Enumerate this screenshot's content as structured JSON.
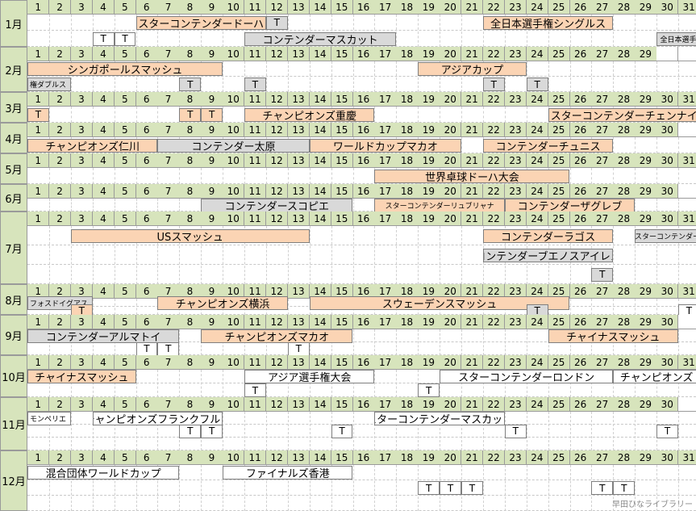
{
  "months": [
    {
      "label": "1月",
      "days": 31,
      "events": [
        {
          "lane": 0,
          "start": 6,
          "end": 11,
          "text": "スターコンテンダードーハ",
          "color": "orange"
        },
        {
          "lane": 0,
          "start": 22,
          "end": 27,
          "text": "全日本選手権シングルス",
          "color": "orange"
        },
        {
          "lane": 1,
          "start": 11,
          "end": 17,
          "text": "コンテンダーマスカット",
          "color": "gray"
        },
        {
          "lane": 1,
          "start": 30,
          "end": 31,
          "text": "全日本選手",
          "color": "gray",
          "small": true
        }
      ],
      "t": [
        {
          "lane": 0,
          "day": 12,
          "color": "gray"
        },
        {
          "lane": 1,
          "day": 4
        },
        {
          "lane": 1,
          "day": 5
        }
      ]
    },
    {
      "label": "2月",
      "days": 29,
      "events": [
        {
          "lane": 0,
          "start": 1,
          "end": 9,
          "text": "シンガポールスマッシュ",
          "color": "orange"
        },
        {
          "lane": 0,
          "start": 19,
          "end": 23,
          "text": "アジアカップ",
          "color": "orange"
        },
        {
          "lane": 1,
          "start": 1,
          "end": 2,
          "text": "権ダブルス",
          "color": "gray",
          "small": true,
          "left": true
        }
      ],
      "t": [
        {
          "lane": 1,
          "day": 8,
          "color": "gray"
        },
        {
          "lane": 1,
          "day": 11,
          "color": "gray"
        },
        {
          "lane": 1,
          "day": 22,
          "color": "gray"
        },
        {
          "lane": 1,
          "day": 24,
          "color": "gray"
        }
      ]
    },
    {
      "label": "3月",
      "days": 31,
      "events": [
        {
          "lane": 0,
          "start": 11,
          "end": 16,
          "text": "チャンピオンズ重慶",
          "color": "orange"
        },
        {
          "lane": 0,
          "start": 25,
          "end": 31,
          "text": "スターコンテンダーチェンナイ",
          "color": "orange"
        }
      ],
      "t": [
        {
          "lane": 0,
          "day": 1,
          "color": "orange"
        },
        {
          "lane": 0,
          "day": 8,
          "color": "orange"
        },
        {
          "lane": 0,
          "day": 9,
          "color": "orange"
        }
      ]
    },
    {
      "label": "4月",
      "days": 30,
      "events": [
        {
          "lane": 0,
          "start": 1,
          "end": 6,
          "text": "チャンピオンズ仁川",
          "color": "orange"
        },
        {
          "lane": 0,
          "start": 7,
          "end": 13,
          "text": "コンテンダー太原",
          "color": "gray"
        },
        {
          "lane": 0,
          "start": 14,
          "end": 20,
          "text": "ワールドカップマカオ",
          "color": "orange"
        },
        {
          "lane": 0,
          "start": 22,
          "end": 27,
          "text": "コンテンダーチュニス",
          "color": "orange"
        }
      ],
      "t": []
    },
    {
      "label": "5月",
      "days": 31,
      "events": [
        {
          "lane": 0,
          "start": 17,
          "end": 25,
          "text": "世界卓球ドーハ大会",
          "color": "orange"
        }
      ],
      "t": []
    },
    {
      "label": "6月",
      "days": 30,
      "events": [
        {
          "lane": 0,
          "start": 9,
          "end": 15,
          "text": "コンテンダースコピエ",
          "color": "gray"
        },
        {
          "lane": 0,
          "start": 17,
          "end": 22,
          "text": "スターコンテンダーリュブリャナ",
          "color": "orange",
          "small": true
        },
        {
          "lane": 0,
          "start": 23,
          "end": 28,
          "text": "コンテンダーザグレブ",
          "color": "orange"
        }
      ],
      "t": []
    },
    {
      "label": "7月",
      "days": 31,
      "events": [
        {
          "lane": 0,
          "start": 3,
          "end": 13,
          "text": "USスマッシュ",
          "color": "orange"
        },
        {
          "lane": 0,
          "start": 22,
          "end": 27,
          "text": "コンテンダーラゴス",
          "color": "orange"
        },
        {
          "lane": 0,
          "start": 29,
          "end": 31,
          "text": "スターコンテンダー",
          "color": "gray",
          "small": true
        },
        {
          "lane": 1,
          "start": 22,
          "end": 27,
          "text": "コンテンダーブエノスアイレス",
          "color": "gray"
        }
      ],
      "t": [
        {
          "lane": 2,
          "day": 27,
          "color": "gray"
        }
      ]
    },
    {
      "label": "8月",
      "days": 31,
      "events": [
        {
          "lane": 0,
          "start": 1,
          "end": 3,
          "text": "フォスドイグアス",
          "color": "gray",
          "small": true,
          "left": true
        },
        {
          "lane": 0,
          "start": 7,
          "end": 12,
          "text": "チャンピオンズ横浜",
          "color": "orange"
        },
        {
          "lane": 0,
          "start": 14,
          "end": 25,
          "text": "スウェーデンスマッシュ",
          "color": "orange"
        }
      ],
      "t": [
        {
          "lane": 1,
          "day": 3,
          "color": "orange"
        },
        {
          "lane": 1,
          "day": 24,
          "color": "gray"
        },
        {
          "lane": 1,
          "day": 31
        }
      ]
    },
    {
      "label": "9月",
      "days": 30,
      "events": [
        {
          "lane": 0,
          "start": 1,
          "end": 7,
          "text": "コンテンダーアルマトイ",
          "color": "gray"
        },
        {
          "lane": 0,
          "start": 9,
          "end": 15,
          "text": "チャンピオンズマカオ",
          "color": "orange"
        },
        {
          "lane": 0,
          "start": 25,
          "end": 30,
          "text": "チャイナスマッシュ",
          "color": "orange"
        }
      ],
      "t": [
        {
          "lane": 1,
          "day": 6
        },
        {
          "lane": 1,
          "day": 7
        },
        {
          "lane": 1,
          "day": 13
        }
      ]
    },
    {
      "label": "10月",
      "days": 31,
      "events": [
        {
          "lane": 0,
          "start": 1,
          "end": 5,
          "text": "チャイナスマッシュ",
          "color": "orange"
        },
        {
          "lane": 0,
          "start": 11,
          "end": 16,
          "text": "アジア選手権大会",
          "color": "white"
        },
        {
          "lane": 0,
          "start": 20,
          "end": 27,
          "text": "スターコンテンダーロンドン",
          "color": "white"
        },
        {
          "lane": 0,
          "start": 28,
          "end": 31,
          "text": "チャンピオンズ",
          "color": "white"
        }
      ],
      "t": [
        {
          "lane": 1,
          "day": 11
        },
        {
          "lane": 1,
          "day": 19
        }
      ]
    },
    {
      "label": "11月",
      "days": 30,
      "events": [
        {
          "lane": 0,
          "start": 1,
          "end": 2,
          "text": "モンペリエ",
          "color": "white",
          "small": true,
          "left": true
        },
        {
          "lane": 0,
          "start": 4,
          "end": 9,
          "text": "チャンピオンズフランクフルト",
          "color": "white"
        },
        {
          "lane": 0,
          "start": 17,
          "end": 22,
          "text": "スターコンテンダーマスカット",
          "color": "white"
        }
      ],
      "t": [
        {
          "lane": 1,
          "day": 8
        },
        {
          "lane": 1,
          "day": 9
        },
        {
          "lane": 1,
          "day": 15
        },
        {
          "lane": 1,
          "day": 23
        },
        {
          "lane": 1,
          "day": 30
        }
      ]
    },
    {
      "label": "12月",
      "days": 31,
      "events": [
        {
          "lane": 0,
          "start": 1,
          "end": 7,
          "text": "混合団体ワールドカップ",
          "color": "white"
        },
        {
          "lane": 0,
          "start": 10,
          "end": 15,
          "text": "ファイナルズ香港",
          "color": "white"
        }
      ],
      "t": [
        {
          "lane": 1,
          "day": 19
        },
        {
          "lane": 1,
          "day": 20
        },
        {
          "lane": 1,
          "day": 21
        },
        {
          "lane": 1,
          "day": 27
        },
        {
          "lane": 1,
          "day": 28
        }
      ]
    }
  ],
  "t_label": "T",
  "footer": "早田ひなライブラリー",
  "colors": {
    "month_bg": "#d7e4bc",
    "orange": "#fbd4b4",
    "gray": "#d9d9d9",
    "white": "#ffffff"
  }
}
